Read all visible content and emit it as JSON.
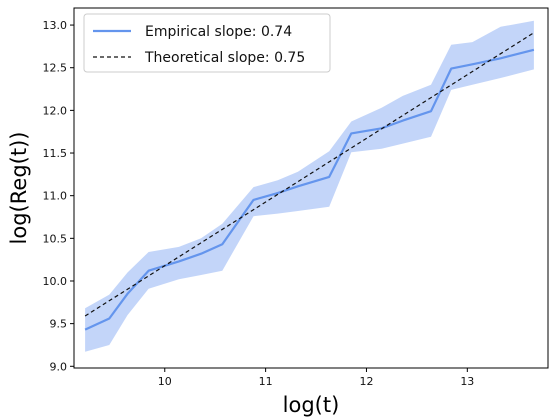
{
  "chart_data": {
    "type": "line",
    "title": "",
    "xlabel": "log(t)",
    "ylabel": "log(Reg(t))",
    "xlim": [
      9.1,
      13.8
    ],
    "ylim": [
      8.98,
      13.2
    ],
    "xticks": [
      10,
      11,
      12,
      13
    ],
    "xtick_labels": [
      "10",
      "11",
      "12",
      "13"
    ],
    "yticks": [
      9.0,
      9.5,
      10.0,
      10.5,
      11.0,
      11.5,
      12.0,
      12.5,
      13.0
    ],
    "ytick_labels": [
      "9.0",
      "9.5",
      "10.0",
      "10.5",
      "11.0",
      "11.5",
      "12.0",
      "12.5",
      "13.0"
    ],
    "grid": false,
    "legend": {
      "position": "top-left"
    },
    "series": [
      {
        "name": "Empirical slope: 0.74",
        "style": "solid",
        "color": "#6495ED",
        "band_color": "#AFC7F7",
        "x": [
          9.21,
          9.45,
          9.63,
          9.84,
          10.14,
          10.36,
          10.57,
          10.88,
          11.12,
          11.32,
          11.63,
          11.85,
          12.15,
          12.36,
          12.64,
          12.84,
          13.05,
          13.33,
          13.66
        ],
        "values": [
          9.43,
          9.56,
          9.85,
          10.12,
          10.23,
          10.32,
          10.43,
          10.95,
          11.03,
          11.11,
          11.22,
          11.73,
          11.79,
          11.88,
          11.99,
          12.49,
          12.54,
          12.61,
          12.71
        ],
        "lower": [
          9.17,
          9.25,
          9.6,
          9.91,
          10.02,
          10.07,
          10.12,
          10.76,
          10.79,
          10.82,
          10.87,
          11.51,
          11.55,
          11.61,
          11.69,
          12.24,
          12.3,
          12.38,
          12.48
        ],
        "upper": [
          9.68,
          9.84,
          10.1,
          10.34,
          10.4,
          10.5,
          10.67,
          11.1,
          11.18,
          11.28,
          11.52,
          11.87,
          12.03,
          12.17,
          12.3,
          12.77,
          12.8,
          12.98,
          13.05
        ]
      },
      {
        "name": "Theoretical slope: 0.75",
        "style": "dashed",
        "color": "#111111",
        "x": [
          9.21,
          13.66
        ],
        "values": [
          9.59,
          12.91
        ]
      }
    ]
  }
}
